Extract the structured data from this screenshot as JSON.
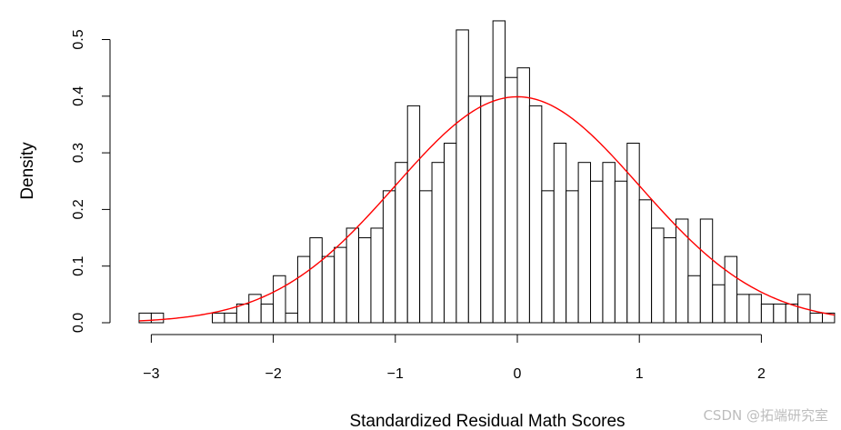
{
  "chart_data": {
    "type": "histogram",
    "xlabel": "Standardized Residual Math Scores",
    "ylabel": "Density",
    "xlim": [
      -3.1,
      2.6
    ],
    "ylim": [
      0,
      0.535
    ],
    "x_ticks": [
      -3,
      -2,
      -1,
      0,
      1,
      2
    ],
    "x_tick_labels": [
      "−3",
      "−2",
      "−1",
      "0",
      "1",
      "2"
    ],
    "y_ticks": [
      0.0,
      0.1,
      0.2,
      0.3,
      0.4,
      0.5
    ],
    "y_tick_labels": [
      "0.0",
      "0.1",
      "0.2",
      "0.3",
      "0.4",
      "0.5"
    ],
    "bin_width": 0.1,
    "bins_start": [
      -3.1,
      -3.0,
      -2.9,
      -2.8,
      -2.7,
      -2.6,
      -2.5,
      -2.4,
      -2.3,
      -2.2,
      -2.1,
      -2.0,
      -1.9,
      -1.8,
      -1.7,
      -1.6,
      -1.5,
      -1.4,
      -1.3,
      -1.2,
      -1.1,
      -1.0,
      -0.9,
      -0.8,
      -0.7,
      -0.6,
      -0.5,
      -0.4,
      -0.3,
      -0.2,
      -0.1,
      0.0,
      0.1,
      0.2,
      0.3,
      0.4,
      0.5,
      0.6,
      0.7,
      0.8,
      0.9,
      1.0,
      1.1,
      1.2,
      1.3,
      1.4,
      1.5,
      1.6,
      1.7,
      1.8,
      1.9,
      2.0,
      2.1,
      2.2,
      2.3,
      2.4,
      2.5
    ],
    "densities": [
      0.017,
      0.017,
      0,
      0,
      0,
      0,
      0.017,
      0.017,
      0.033,
      0.05,
      0.033,
      0.083,
      0.017,
      0.117,
      0.15,
      0.117,
      0.133,
      0.167,
      0.15,
      0.167,
      0.233,
      0.283,
      0.383,
      0.233,
      0.283,
      0.317,
      0.517,
      0.4,
      0.4,
      0.533,
      0.433,
      0.45,
      0.383,
      0.233,
      0.317,
      0.233,
      0.283,
      0.25,
      0.283,
      0.25,
      0.317,
      0.217,
      0.167,
      0.15,
      0.183,
      0.083,
      0.183,
      0.067,
      0.117,
      0.05,
      0.05,
      0.033,
      0.033,
      0.033,
      0.05,
      0.017,
      0.017
    ],
    "overlay_curve": {
      "type": "normal_density",
      "mean": 0,
      "sd": 1,
      "color": "#ff0000"
    },
    "bar_fill": "#ffffff",
    "bar_stroke": "#000000"
  },
  "watermark": "CSDN @拓端研究室"
}
